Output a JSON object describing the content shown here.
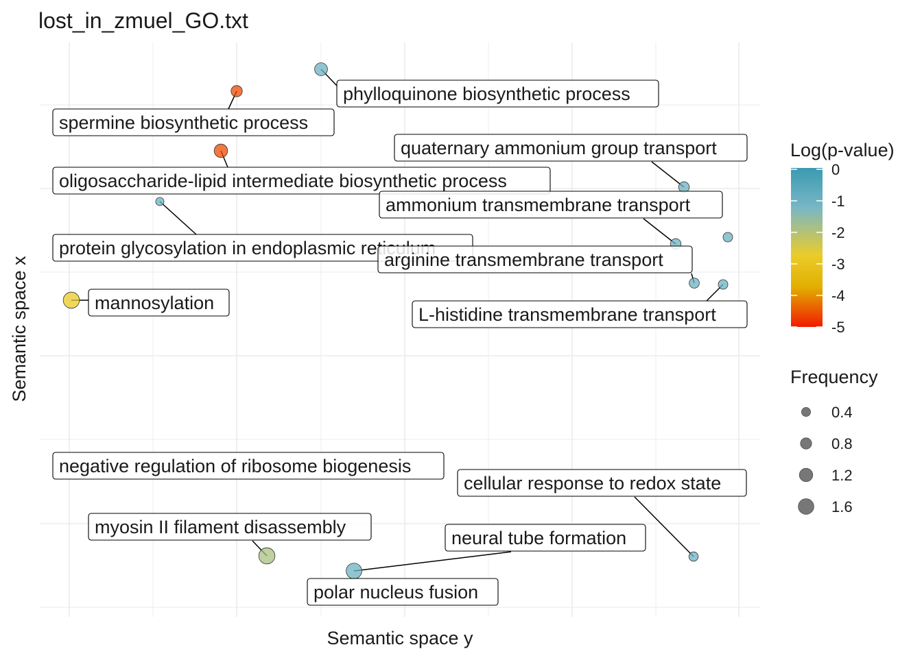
{
  "chart_data": {
    "type": "scatter",
    "title": "lost_in_zmuel_GO.txt",
    "xlabel": "Semantic space y",
    "ylabel": "Semantic space x",
    "grid": true,
    "legend_position": "right",
    "points": [
      {
        "label": "phylloquinone biosynthetic process",
        "x": 0.0,
        "y": 8.3,
        "logp": -1.0,
        "freq": 1.1
      },
      {
        "label": "spermine biosynthetic process",
        "x": -1.0,
        "y": 7.6,
        "logp": -4.6,
        "freq": 0.8
      },
      {
        "label": "quaternary ammonium group transport",
        "x": 4.25,
        "y": 5.9,
        "logp": -1.0,
        "freq": 0.7
      },
      {
        "label": "oligosaccharide-lipid intermediate biosynthetic process",
        "x": -1.2,
        "y": 6.4,
        "logp": -4.6,
        "freq": 1.2
      },
      {
        "label": "ammonium transmembrane transport",
        "x": 4.2,
        "y": 4.65,
        "logp": -1.0,
        "freq": 0.7
      },
      {
        "label": "protein glycosylation in endoplasmic reticulum",
        "x": -1.9,
        "y": 5.65,
        "logp": -1.0,
        "freq": 0.25
      },
      {
        "label": "arginine transmembrane transport",
        "x": 4.35,
        "y": 4.1,
        "logp": -1.0,
        "freq": 0.6
      },
      {
        "label": "L-histidine transmembrane transport",
        "x": 4.7,
        "y": 3.95,
        "logp": -1.0,
        "freq": 0.5
      },
      {
        "label": "",
        "x": 4.75,
        "y": 4.77,
        "logp": -1.0,
        "freq": 0.5
      },
      {
        "label": "mannosylation",
        "x": -3.0,
        "y": 3.7,
        "logp": -2.8,
        "freq": 1.7
      },
      {
        "label": "negative regulation of ribosome biogenesis",
        "x": 4.3,
        "y": -1.6,
        "logp": -1.0,
        "freq": 0.45
      },
      {
        "label": "cellular response to redox state",
        "x": 4.3,
        "y": -1.6,
        "logp": -1.0,
        "freq": 0.45
      },
      {
        "label": "myosin II filament disassembly",
        "x": -0.65,
        "y": -1.6,
        "logp": -1.9,
        "freq": 1.7
      },
      {
        "label": "neural tube formation",
        "x": 0.4,
        "y": -2.1,
        "logp": -1.0,
        "freq": 1.6
      },
      {
        "label": "polar nucleus fusion",
        "x": 0.4,
        "y": -2.1,
        "logp": -1.0,
        "freq": 1.6
      }
    ],
    "color_legend": {
      "title": "Log(p-value)",
      "ticks": [
        "0",
        "-1",
        "-2",
        "-3",
        "-4",
        "-5"
      ],
      "range": [
        -5,
        0
      ],
      "colors": [
        "#F21A00",
        "#E1AF00",
        "#EBCC2A",
        "#78B7C5",
        "#3B9AB2"
      ]
    },
    "size_legend": {
      "title": "Frequency",
      "entries": [
        "0.4",
        "0.8",
        "1.2",
        "1.6"
      ],
      "values": [
        0.4,
        0.8,
        1.2,
        1.6
      ]
    }
  }
}
